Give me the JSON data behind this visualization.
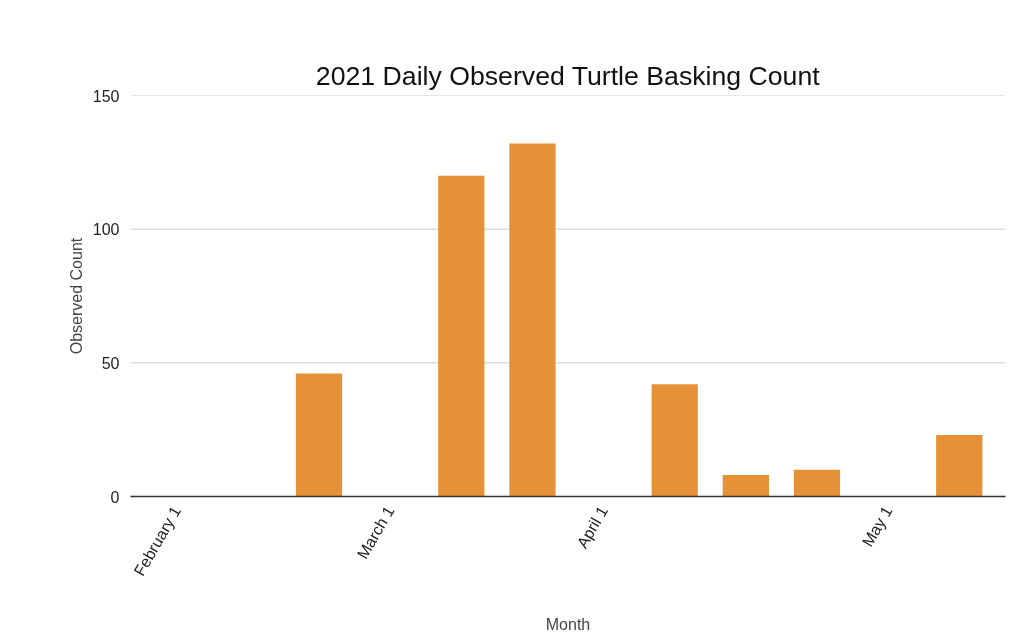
{
  "chart_data": {
    "type": "bar",
    "title": "2021 Daily Observed Turtle Basking Count",
    "xlabel": "Month",
    "ylabel": "Observed Count",
    "categories": [
      "February 1",
      null,
      null,
      "March 1",
      null,
      null,
      "April 1",
      null,
      null,
      null,
      "May 1",
      null
    ],
    "series": [
      {
        "color": "#e69138",
        "values": [
          0,
          0,
          46,
          0,
          120,
          132,
          0,
          42,
          8,
          10,
          0,
          23
        ]
      }
    ],
    "ylim": [
      0,
      150
    ],
    "yticks": [
      0,
      50,
      100,
      150
    ],
    "grid": "y"
  }
}
